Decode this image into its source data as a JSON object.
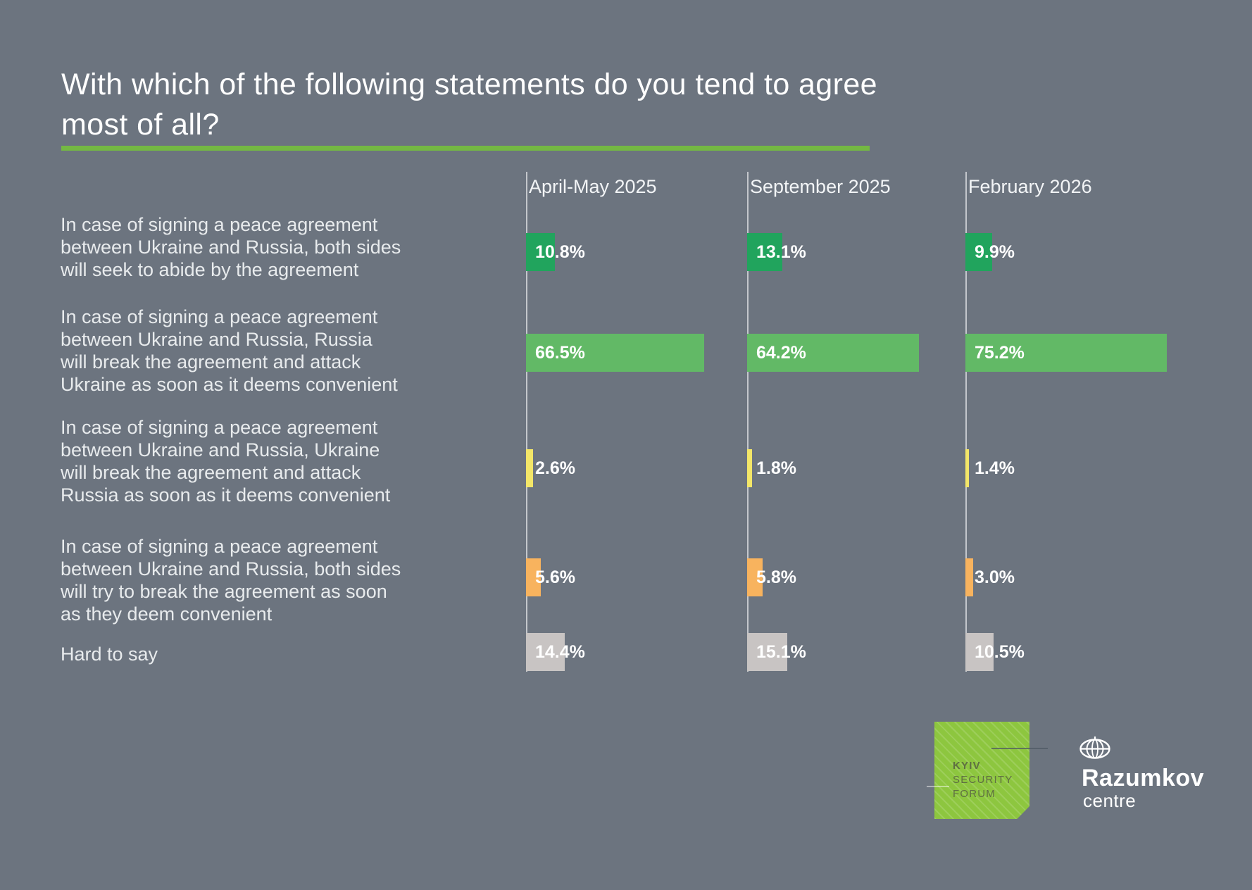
{
  "title": {
    "line1": "With which of the following statements do you tend",
    "line2": "to agree most of all?",
    "full": "With which of the following statements do you tend to agree most of all?"
  },
  "columns": [
    "April-May 2025",
    "September 2025",
    "February 2026"
  ],
  "rows": [
    {
      "label": "In case of signing a peace agreement\nbetween Ukraine and Russia, both sides\nwill seek to abide by the agreement",
      "color": "#21a45d",
      "values": [
        10.8,
        13.1,
        9.9
      ],
      "value_labels": [
        "10.8%",
        "13.1%",
        "9.9%"
      ]
    },
    {
      "label": "In case of signing a peace agreement\nbetween Ukraine and Russia, Russia\nwill break the agreement and attack\nUkraine as soon as it deems convenient",
      "color": "#62b966",
      "values": [
        66.5,
        64.2,
        75.2
      ],
      "value_labels": [
        "66.5%",
        "64.2%",
        "75.2%"
      ]
    },
    {
      "label": "In case of signing a peace agreement\nbetween Ukraine and Russia, Ukraine\nwill break the agreement and attack\nRussia as soon as it deems convenient",
      "color": "#f3e668",
      "values": [
        2.6,
        1.8,
        1.4
      ],
      "value_labels": [
        "2.6%",
        "1.8%",
        "1.4%"
      ]
    },
    {
      "label": "In case of signing a peace agreement\nbetween Ukraine and Russia, both sides\nwill try to break the agreement as soon\nas they deem convenient",
      "color": "#f8b35e",
      "values": [
        5.6,
        5.8,
        3.0
      ],
      "value_labels": [
        "5.6%",
        "5.8%",
        "3.0%"
      ]
    },
    {
      "label": "Hard to say",
      "color": "#c8c4c3",
      "values": [
        14.4,
        15.1,
        10.5
      ],
      "value_labels": [
        "14.4%",
        "15.1%",
        "10.5%"
      ]
    }
  ],
  "colors": {
    "background": "#6c747f",
    "title_rule_green": "#74b843",
    "axis_line": "rgba(255,255,255,0.6)",
    "ksf_green": "#8dc63f",
    "text_light": "#e8ebed"
  },
  "logos": {
    "ksf": {
      "line1": "KYIV",
      "line2": "SECURITY",
      "line3": "FORUM"
    },
    "razumkov": {
      "name": "Razumkov",
      "sub": "centre"
    }
  },
  "chart_data": {
    "type": "bar",
    "orientation": "horizontal",
    "title": "With which of the following statements do you tend to agree most of all?",
    "unit": "%",
    "categories": [
      "In case of signing a peace agreement between Ukraine and Russia, both sides will seek to abide by the agreement",
      "In case of signing a peace agreement between Ukraine and Russia, Russia will break the agreement and attack Ukraine as soon as it deems convenient",
      "In case of signing a peace agreement between Ukraine and Russia, Ukraine will break the agreement and attack Russia as soon as it deems convenient",
      "In case of signing a peace agreement between Ukraine and Russia, both sides will try to break the agreement as soon as they deem convenient",
      "Hard to say"
    ],
    "series": [
      {
        "name": "April-May 2025",
        "values": [
          10.8,
          66.5,
          2.6,
          5.6,
          14.4
        ]
      },
      {
        "name": "September 2025",
        "values": [
          13.1,
          64.2,
          1.8,
          5.8,
          15.1
        ]
      },
      {
        "name": "February 2026",
        "values": [
          9.9,
          75.2,
          1.4,
          3.0,
          10.5
        ]
      }
    ],
    "xlim": [
      0,
      80
    ],
    "grid": false,
    "legend_position": "column-headers-top",
    "category_colors": [
      "#21a45d",
      "#62b966",
      "#f3e668",
      "#f8b35e",
      "#c8c4c3"
    ]
  }
}
